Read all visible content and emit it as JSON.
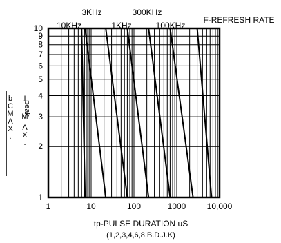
{
  "chart_data": {
    "type": "line",
    "title": "",
    "xlabel": "tp-PULSE DURATION uS",
    "xlabel_note": "(1,2,3,4,6,8,B.D.J.K)",
    "ylabel_left": [
      "b",
      "C",
      "M",
      "A",
      "X",
      "."
    ],
    "ylabel_right": [
      "I",
      "peak",
      "M",
      "A",
      "X",
      "."
    ],
    "x_scale": "log",
    "y_scale": "log",
    "xlim": [
      1,
      10000
    ],
    "ylim": [
      1,
      10
    ],
    "grid": true,
    "x_ticks": [
      {
        "value": 1,
        "label": "1"
      },
      {
        "value": 10,
        "label": "10"
      },
      {
        "value": 100,
        "label": "100"
      },
      {
        "value": 1000,
        "label": "1000"
      },
      {
        "value": 10000,
        "label": "10,000"
      }
    ],
    "y_ticks": [
      {
        "value": 1,
        "label": "1"
      },
      {
        "value": 2,
        "label": "2"
      },
      {
        "value": 3,
        "label": "3"
      },
      {
        "value": 4,
        "label": "4"
      },
      {
        "value": 5,
        "label": "5"
      },
      {
        "value": 6,
        "label": "6"
      },
      {
        "value": 7,
        "label": "7"
      },
      {
        "value": 8,
        "label": "8"
      },
      {
        "value": 9,
        "label": "9"
      },
      {
        "value": 10,
        "label": "10"
      }
    ],
    "legend_title": "F-REFRESH RATE",
    "series": [
      {
        "name": "10KHz",
        "x": [
          6,
          7.2
        ],
        "y": [
          10,
          1
        ]
      },
      {
        "name": "3KHz",
        "x": [
          7.2,
          22
        ],
        "y": [
          10,
          1
        ]
      },
      {
        "name": "1KHz",
        "x": [
          22,
          70
        ],
        "y": [
          10,
          1
        ]
      },
      {
        "name": "300KHz",
        "x": [
          70,
          220
        ],
        "y": [
          10,
          1
        ]
      },
      {
        "name": "100KHz",
        "x": [
          220,
          700
        ],
        "y": [
          10,
          1
        ]
      },
      {
        "name": "F-REFRESH RATE",
        "x": [
          700,
          2400
        ],
        "y": [
          10,
          1
        ]
      },
      {
        "name": "",
        "x": [
          3000,
          6500
        ],
        "y": [
          10,
          1
        ]
      }
    ]
  }
}
